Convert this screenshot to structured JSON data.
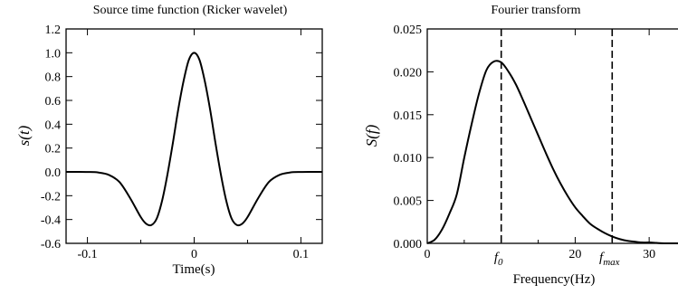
{
  "chart_data": [
    {
      "type": "line",
      "title": "Source time function (Ricker wavelet)",
      "xlabel": "Time(s)",
      "ylabel": "s(t)",
      "xlim": [
        -0.12,
        0.12
      ],
      "ylim": [
        -0.6,
        1.2
      ],
      "x_ticks": [
        -0.1,
        0,
        0.1
      ],
      "x_tick_labels": [
        "-0.1",
        "0",
        "0.1"
      ],
      "y_ticks": [
        -0.6,
        -0.4,
        -0.2,
        0.0,
        0.2,
        0.4,
        0.6,
        0.8,
        1.0,
        1.2
      ],
      "y_tick_labels": [
        "-0.6",
        "-0.4",
        "-0.2",
        "0.0",
        "0.2",
        "0.4",
        "0.6",
        "0.8",
        "1.0",
        "1.2"
      ],
      "grid": false,
      "series": [
        {
          "color": "#000000",
          "x": [
            -0.12,
            -0.11,
            -0.1,
            -0.09,
            -0.08,
            -0.07,
            -0.06,
            -0.05,
            -0.045,
            -0.04,
            -0.035,
            -0.03,
            -0.025,
            -0.02,
            -0.015,
            -0.01,
            -0.005,
            0,
            0.005,
            0.01,
            0.015,
            0.02,
            0.025,
            0.03,
            0.035,
            0.04,
            0.045,
            0.05,
            0.06,
            0.07,
            0.08,
            0.09,
            0.1,
            0.11,
            0.12
          ],
          "y": [
            0,
            0,
            -0.001,
            -0.005,
            -0.025,
            -0.085,
            -0.22,
            -0.38,
            -0.435,
            -0.446,
            -0.39,
            -0.24,
            -0.02,
            0.24,
            0.52,
            0.76,
            0.94,
            1.0,
            0.94,
            0.76,
            0.52,
            0.24,
            -0.02,
            -0.24,
            -0.39,
            -0.446,
            -0.435,
            -0.38,
            -0.22,
            -0.085,
            -0.025,
            -0.005,
            -0.001,
            0,
            0
          ]
        }
      ]
    },
    {
      "type": "line",
      "title": "Fourier transform",
      "xlabel": "Frequency(Hz)",
      "ylabel": "S(f)",
      "xlim": [
        0,
        35
      ],
      "ylim": [
        0,
        0.025
      ],
      "x_ticks": [
        0,
        10,
        20,
        30
      ],
      "x_tick_labels": [
        "0",
        "",
        "20",
        "30"
      ],
      "y_ticks": [
        0,
        0.005,
        0.01,
        0.015,
        0.02,
        0.025
      ],
      "y_tick_labels": [
        "0.000",
        "0.005",
        "0.010",
        "0.015",
        "0.020",
        "0.025"
      ],
      "grid": false,
      "series": [
        {
          "color": "#000000",
          "x": [
            0,
            1,
            2,
            3,
            4,
            5,
            6,
            7,
            8,
            9,
            10,
            11,
            12,
            13,
            14,
            15,
            16,
            17,
            18,
            19,
            20,
            21,
            22,
            23,
            24,
            25,
            26,
            27,
            28,
            29,
            30,
            31,
            32,
            33,
            34,
            35
          ],
          "y": [
            0,
            0.00042,
            0.00162,
            0.00347,
            0.00574,
            0.00998,
            0.01391,
            0.01748,
            0.0202,
            0.0212,
            0.0211,
            0.02,
            0.0185,
            0.0166,
            0.0146,
            0.0126,
            0.0106,
            0.0087,
            0.007,
            0.0055,
            0.0042,
            0.0032,
            0.0023,
            0.0017,
            0.0012,
            0.0008,
            0.0005,
            0.0003,
            0.0002,
            0.0001,
            0.0001,
            5e-05,
            0,
            0,
            0,
            0
          ]
        }
      ],
      "markers": [
        {
          "x": 10,
          "label": "f",
          "sub": "0",
          "style": "dashed"
        },
        {
          "x": 25,
          "label": "f",
          "sub": "max",
          "style": "dashed"
        }
      ]
    }
  ]
}
